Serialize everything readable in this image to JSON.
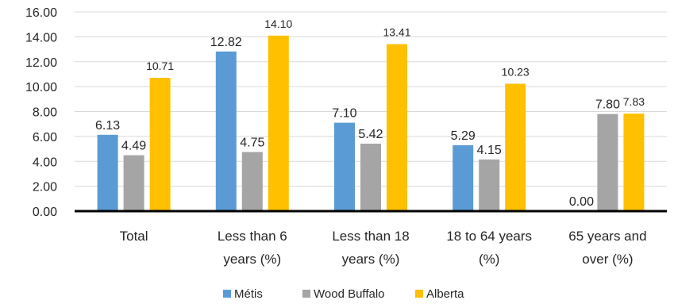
{
  "chart_data": {
    "type": "bar",
    "categories": [
      [
        "Total"
      ],
      [
        "Less than 6",
        "years (%)"
      ],
      [
        "Less than 18",
        "years (%)"
      ],
      [
        "18 to 64 years",
        "(%)"
      ],
      [
        "65 years and",
        "over (%)"
      ]
    ],
    "series": [
      {
        "name": "Métis",
        "color": "#5B9BD5",
        "values": [
          6.13,
          12.82,
          7.1,
          5.29,
          0.0
        ],
        "labels": [
          "6.13",
          "12.82",
          "7.10",
          "5.29",
          "0.00"
        ]
      },
      {
        "name": "Wood Buffalo",
        "color": "#A5A5A5",
        "values": [
          4.49,
          4.75,
          5.42,
          4.15,
          7.8
        ],
        "labels": [
          "4.49",
          "4.75",
          "5.42",
          "4.15",
          "7.80"
        ]
      },
      {
        "name": "Alberta",
        "color": "#FFC000",
        "values": [
          10.71,
          14.1,
          13.41,
          10.23,
          7.83
        ],
        "labels": [
          "10.71",
          "14.10",
          "13.41",
          "10.23",
          "7.83"
        ]
      }
    ],
    "yticks": [
      "0.00",
      "2.00",
      "4.00",
      "6.00",
      "8.00",
      "10.00",
      "12.00",
      "14.00",
      "16.00"
    ],
    "ylim": [
      0,
      16
    ],
    "grid": true,
    "legend_position": "bottom"
  }
}
